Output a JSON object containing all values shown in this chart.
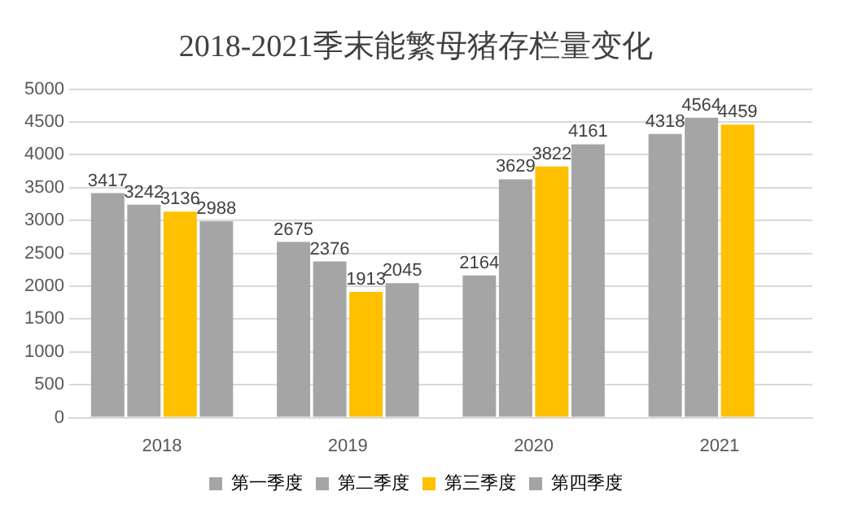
{
  "chart_data": {
    "type": "bar",
    "title": "2018-2021季末能繁母猪存栏量变化",
    "categories": [
      "2018",
      "2019",
      "2020",
      "2021"
    ],
    "series": [
      {
        "name": "第一季度",
        "color": "#a5a5a5",
        "values": [
          3417,
          2675,
          2164,
          4318
        ]
      },
      {
        "name": "第二季度",
        "color": "#a5a5a5",
        "values": [
          3242,
          2376,
          3629,
          4564
        ]
      },
      {
        "name": "第三季度",
        "color": "#ffc000",
        "values": [
          3136,
          1913,
          3822,
          4459
        ]
      },
      {
        "name": "第四季度",
        "color": "#a5a5a5",
        "values": [
          2988,
          2045,
          4161,
          null
        ]
      }
    ],
    "ylim": [
      0,
      5000
    ],
    "yticks": [
      0,
      500,
      1000,
      1500,
      2000,
      2500,
      3000,
      3500,
      4000,
      4500,
      5000
    ],
    "grid": "y",
    "legend": "bottom",
    "data_labels": true
  }
}
